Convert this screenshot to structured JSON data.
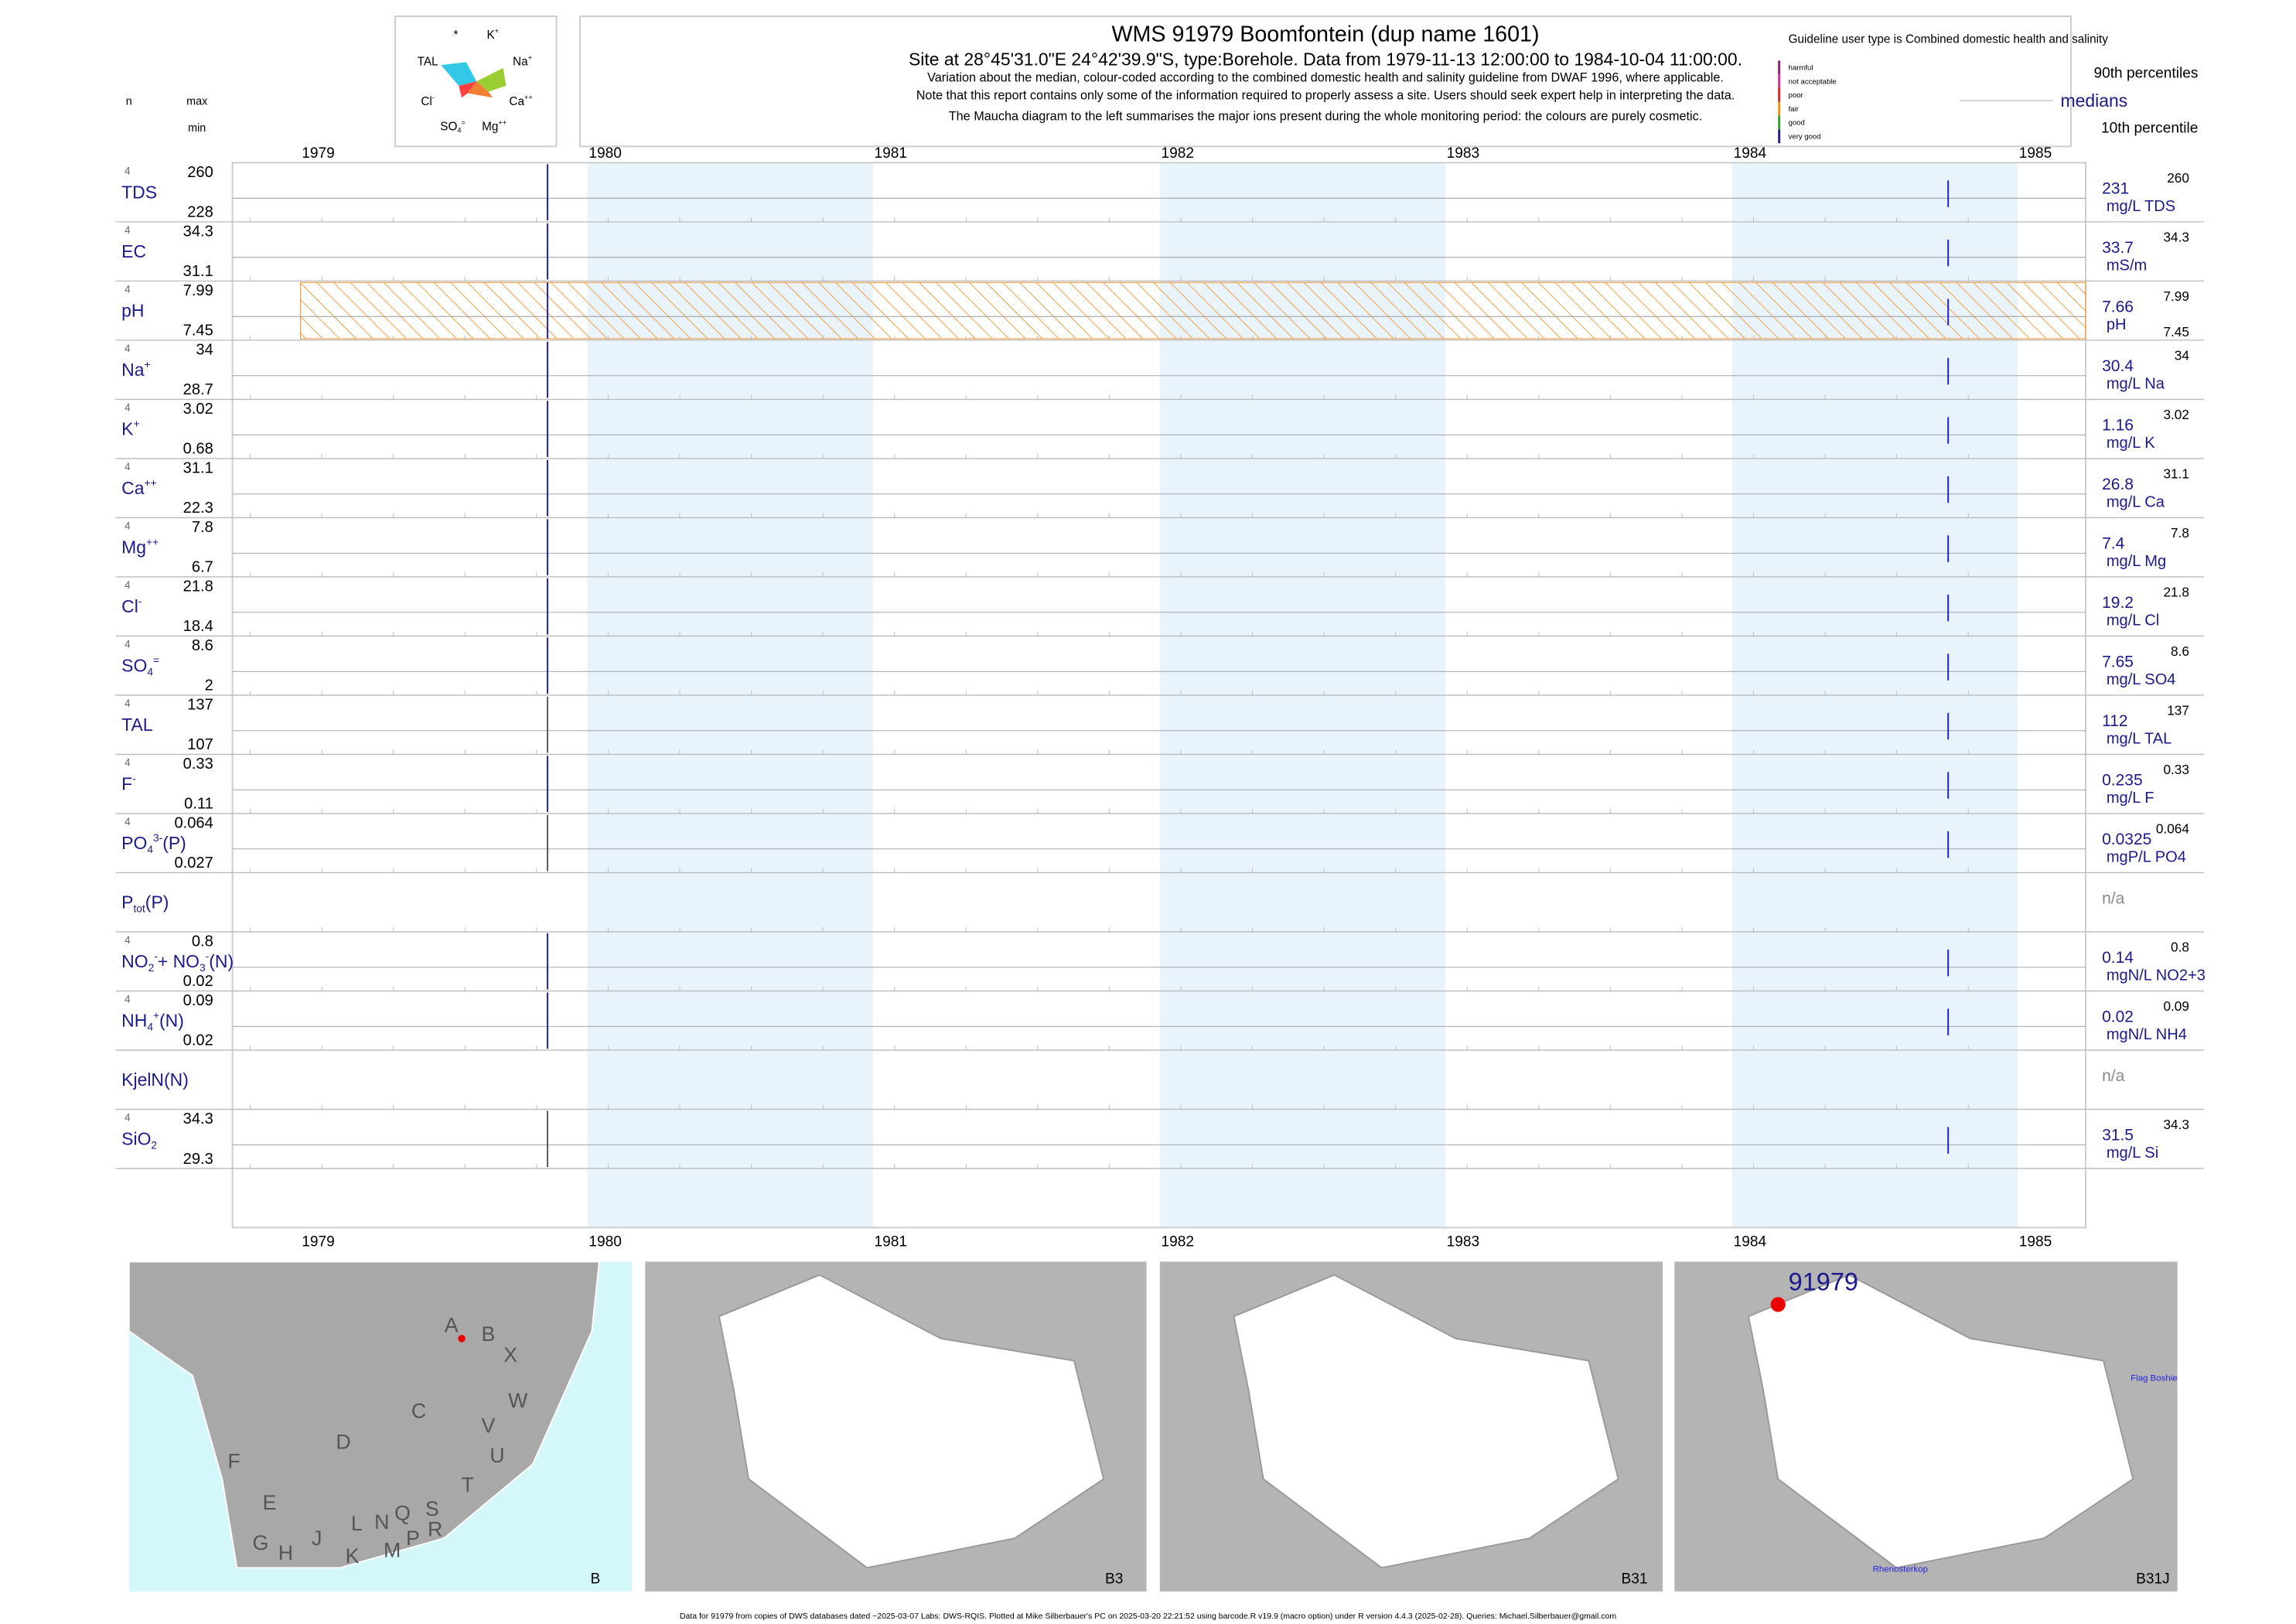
{
  "header": {
    "title": "WMS 91979  Boomfontein (dup name 1601)",
    "subtitle": "Site at 28°45'31.0\"E 24°42'39.9\"S, type:Borehole.  Data from 1979-11-13 12:00:00 to 1984-10-04 11:00:00.",
    "notes": [
      "Variation about the median, colour-coded according to the combined domestic health and salinity guideline from DWAF 1996, where applicable.",
      "Note that this report contains only some of the information required to properly assess a site. Users should seek expert help in interpreting the data.",
      "The Maucha diagram to the left summarises the major ions present during the whole monitoring period: the colours are purely cosmetic."
    ]
  },
  "maucha": [
    [
      "*"
    ],
    [
      "K",
      "+"
    ],
    [
      "TAL"
    ],
    [
      "Na",
      "+"
    ],
    [
      "Cl",
      "-"
    ],
    [
      "Ca",
      "++"
    ],
    [
      "SO",
      "4",
      "="
    ],
    [
      "Mg",
      "++"
    ]
  ],
  "column_heads": {
    "n": "n",
    "max": "max",
    "min": "min"
  },
  "legend": {
    "guideline": "Guideline user type is Combined domestic health and salinity",
    "classes": [
      "harmful",
      "not acceptable",
      "poor",
      "fair",
      "good",
      "very good"
    ],
    "p90": "90th percentiles",
    "medians": "medians",
    "p10": "10th percentile"
  },
  "years": [
    "1979",
    "1980",
    "1981",
    "1982",
    "1983",
    "1984",
    "1985"
  ],
  "rows": [
    {
      "n": "4",
      "label": [
        "TDS"
      ],
      "max": "260",
      "min": "228",
      "median": "231",
      "unit": "mg/L TDS"
    },
    {
      "n": "4",
      "label": [
        "EC"
      ],
      "max": "34.3",
      "min": "31.1",
      "median": "33.7",
      "unit": "mS/m"
    },
    {
      "n": "4",
      "label": [
        "pH"
      ],
      "max": "7.99",
      "min": "7.45",
      "median": "7.66",
      "unit": "pH"
    },
    {
      "n": "4",
      "label": [
        "Na",
        "+"
      ],
      "max": "34",
      "min": "28.7",
      "median": "30.4",
      "unit": "mg/L Na"
    },
    {
      "n": "4",
      "label": [
        "K",
        "+"
      ],
      "max": "3.02",
      "min": "0.68",
      "median": "1.16",
      "unit": "mg/L K"
    },
    {
      "n": "4",
      "label": [
        "Ca",
        "++"
      ],
      "max": "31.1",
      "min": "22.3",
      "median": "26.8",
      "unit": "mg/L Ca"
    },
    {
      "n": "4",
      "label": [
        "Mg",
        "++"
      ],
      "max": "7.8",
      "min": "6.7",
      "median": "7.4",
      "unit": "mg/L Mg"
    },
    {
      "n": "4",
      "label": [
        "Cl",
        "-"
      ],
      "max": "21.8",
      "min": "18.4",
      "median": "19.2",
      "unit": "mg/L Cl"
    },
    {
      "n": "4",
      "label": [
        "SO",
        "4",
        "="
      ],
      "max": "8.6",
      "min": "2",
      "median": "7.65",
      "unit": "mg/L SO4"
    },
    {
      "n": "4",
      "label": [
        "TAL"
      ],
      "max": "137",
      "min": "107",
      "median": "112",
      "unit": "mg/L TAL"
    },
    {
      "n": "4",
      "label": [
        "F",
        "-"
      ],
      "max": "0.33",
      "min": "0.11",
      "median": "0.235",
      "unit": "mg/L F"
    },
    {
      "n": "4",
      "label": [
        "PO",
        "4",
        "3-",
        "(P)"
      ],
      "max": "0.064",
      "min": "0.027",
      "median": "0.0325",
      "unit": "mgP/L PO4"
    },
    {
      "label": [
        "P",
        "tot",
        "(P)"
      ],
      "median": "n/a"
    },
    {
      "n": "4",
      "label": [
        "NO",
        "2",
        "-",
        "+ NO",
        "3",
        "-",
        "(N)"
      ],
      "max": "0.8",
      "min": "0.02",
      "median": "0.14",
      "unit": "mgN/L NO2+3"
    },
    {
      "n": "4",
      "label": [
        "NH",
        "4",
        "+",
        "(N)"
      ],
      "max": "0.09",
      "min": "0.02",
      "median": "0.02",
      "unit": "mgN/L NH4"
    },
    {
      "label": [
        "KjelN(N)"
      ],
      "median": "n/a"
    },
    {
      "n": "4",
      "label": [
        "SiO",
        "2"
      ],
      "max": "34.3",
      "min": "29.3",
      "median": "31.5",
      "unit": "mg/L Si"
    }
  ],
  "maps": {
    "region_letters": [
      "A",
      "B",
      "X",
      "C",
      "W",
      "D",
      "V",
      "U",
      "F",
      "E",
      "T",
      "S",
      "R",
      "Q",
      "N",
      "L",
      "M",
      "P",
      "K",
      "J",
      "H",
      "G"
    ],
    "panels": [
      "B",
      "B3",
      "B31",
      "B31J"
    ],
    "site": "91979",
    "places": [
      "Flag Boshie",
      "Rhenosterkop"
    ]
  },
  "footer": "Data for 91979 from copies of DWS databases dated ~2025-03-07 Labs: DWS-RQIS. Plotted at Mike Silberbauer's PC on 2025-03-20 22:21:52 using barcode.R v19.9 (macro option) under R version 4.4.3 (2025-02-28). Queries: Michael.Silberbauer@gmail.com"
}
